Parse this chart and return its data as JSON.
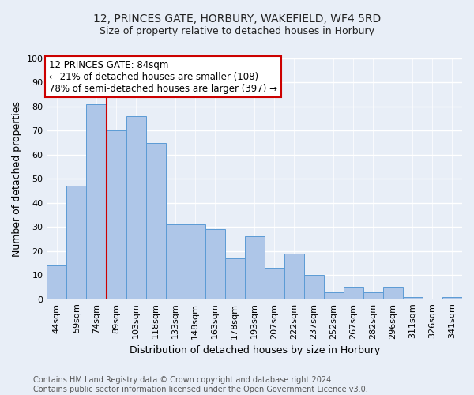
{
  "title": "12, PRINCES GATE, HORBURY, WAKEFIELD, WF4 5RD",
  "subtitle": "Size of property relative to detached houses in Horbury",
  "xlabel": "Distribution of detached houses by size in Horbury",
  "ylabel": "Number of detached properties",
  "categories": [
    "44sqm",
    "59sqm",
    "74sqm",
    "89sqm",
    "103sqm",
    "118sqm",
    "133sqm",
    "148sqm",
    "163sqm",
    "178sqm",
    "193sqm",
    "207sqm",
    "222sqm",
    "237sqm",
    "252sqm",
    "267sqm",
    "282sqm",
    "296sqm",
    "311sqm",
    "326sqm",
    "341sqm"
  ],
  "values": [
    14,
    47,
    81,
    70,
    76,
    65,
    31,
    31,
    29,
    17,
    26,
    13,
    19,
    10,
    3,
    5,
    3,
    5,
    1,
    0,
    1
  ],
  "bar_color": "#aec6e8",
  "bar_edge_color": "#5b9bd5",
  "background_color": "#e8eef7",
  "grid_color": "#ffffff",
  "ylim": [
    0,
    100
  ],
  "yticks": [
    0,
    10,
    20,
    30,
    40,
    50,
    60,
    70,
    80,
    90,
    100
  ],
  "marker_label": "12 PRINCES GATE: 84sqm",
  "annotation_line1": "← 21% of detached houses are smaller (108)",
  "annotation_line2": "78% of semi-detached houses are larger (397) →",
  "annotation_box_color": "#ffffff",
  "annotation_box_edge_color": "#cc0000",
  "vline_color": "#cc0000",
  "footer_line1": "Contains HM Land Registry data © Crown copyright and database right 2024.",
  "footer_line2": "Contains public sector information licensed under the Open Government Licence v3.0.",
  "title_fontsize": 10,
  "subtitle_fontsize": 9,
  "axis_label_fontsize": 9,
  "tick_fontsize": 8,
  "annotation_fontsize": 8.5,
  "footer_fontsize": 7
}
